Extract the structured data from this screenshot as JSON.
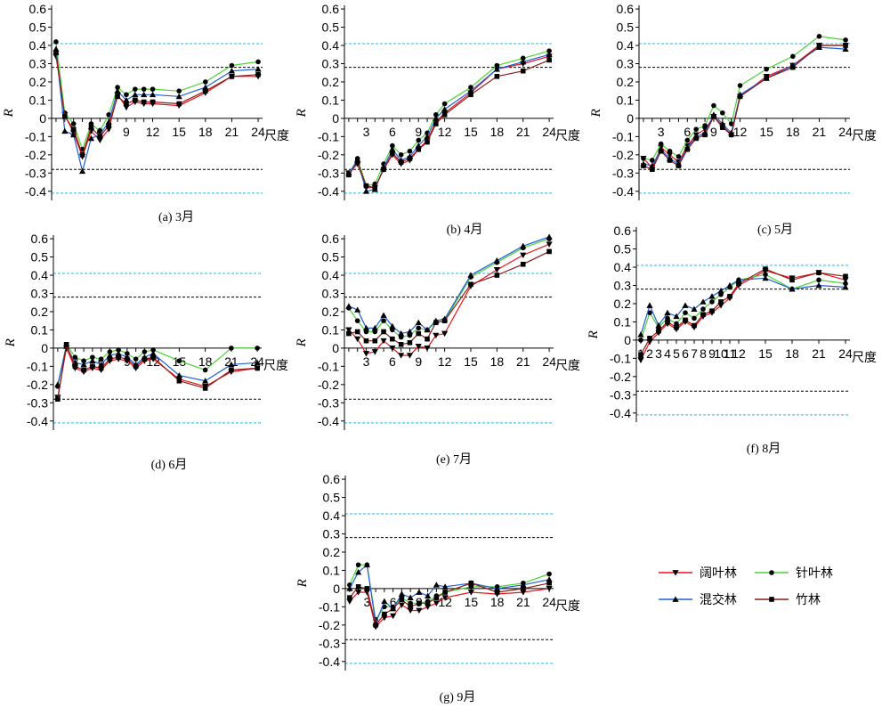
{
  "legend": [
    {
      "name": "阔叶林",
      "color": "#e8141b",
      "marker": "triangle-down"
    },
    {
      "name": "针叶林",
      "color": "#4cd137",
      "marker": "circle"
    },
    {
      "name": "混交林",
      "color": "#1f5fd6",
      "marker": "triangle-up"
    },
    {
      "name": "竹林",
      "color": "#8b1a1a",
      "marker": "square"
    }
  ],
  "threshold_colors": {
    "inner": "#000000",
    "outer": "#22b8e8"
  },
  "axis_text": {
    "ylabel": "R",
    "xunit": "尺度"
  },
  "chart_data": [
    {
      "type": "line",
      "caption": "(a) 3月",
      "x": [
        1,
        2,
        3,
        4,
        5,
        6,
        7,
        8,
        9,
        10,
        11,
        12,
        15,
        18,
        21,
        24
      ],
      "xticks": [
        3,
        6,
        9,
        12,
        15,
        18,
        21,
        24
      ],
      "yticks": [
        -0.4,
        -0.3,
        -0.2,
        -0.1,
        0,
        0.1,
        0.2,
        0.3,
        0.4,
        0.5,
        0.6
      ],
      "ylim": [
        -0.45,
        0.62
      ],
      "thresholds": {
        "inner": 0.28,
        "outer": 0.41
      },
      "series": [
        {
          "name": "阔叶林",
          "values": [
            0.34,
            0.02,
            -0.08,
            -0.21,
            -0.07,
            -0.12,
            -0.06,
            0.13,
            0.06,
            0.09,
            0.08,
            0.08,
            0.07,
            0.14,
            0.23,
            0.23
          ]
        },
        {
          "name": "针叶林",
          "values": [
            0.42,
            0.03,
            -0.03,
            -0.17,
            -0.03,
            -0.07,
            0.02,
            0.17,
            0.13,
            0.16,
            0.16,
            0.16,
            0.15,
            0.2,
            0.29,
            0.31
          ]
        },
        {
          "name": "混交林",
          "values": [
            0.38,
            -0.07,
            -0.09,
            -0.29,
            -0.11,
            -0.09,
            -0.02,
            0.15,
            0.1,
            0.13,
            0.13,
            0.13,
            0.12,
            0.17,
            0.26,
            0.27
          ]
        },
        {
          "name": "竹林",
          "values": [
            0.36,
            0.01,
            -0.06,
            -0.2,
            -0.05,
            -0.1,
            -0.04,
            0.12,
            0.08,
            0.1,
            0.09,
            0.09,
            0.08,
            0.15,
            0.23,
            0.24
          ]
        }
      ]
    },
    {
      "type": "line",
      "caption": "(b) 4月",
      "x": [
        1,
        2,
        3,
        4,
        5,
        6,
        7,
        8,
        9,
        10,
        11,
        12,
        15,
        18,
        21,
        24
      ],
      "xticks": [
        3,
        6,
        9,
        12,
        15,
        18,
        21,
        24
      ],
      "yticks": [
        -0.4,
        -0.3,
        -0.2,
        -0.1,
        0,
        0.1,
        0.2,
        0.3,
        0.4,
        0.5,
        0.6
      ],
      "ylim": [
        -0.45,
        0.62
      ],
      "thresholds": {
        "inner": 0.28,
        "outer": 0.41
      },
      "series": [
        {
          "name": "阔叶林",
          "values": [
            -0.3,
            -0.25,
            -0.38,
            -0.38,
            -0.28,
            -0.2,
            -0.25,
            -0.23,
            -0.17,
            -0.12,
            -0.02,
            0.03,
            0.14,
            0.27,
            0.3,
            0.34
          ]
        },
        {
          "name": "针叶林",
          "values": [
            -0.31,
            -0.22,
            -0.37,
            -0.36,
            -0.25,
            -0.15,
            -0.2,
            -0.18,
            -0.12,
            -0.08,
            0.02,
            0.08,
            0.17,
            0.29,
            0.33,
            0.37
          ]
        },
        {
          "name": "混交林",
          "values": [
            -0.3,
            -0.23,
            -0.4,
            -0.39,
            -0.27,
            -0.17,
            -0.23,
            -0.21,
            -0.15,
            -0.1,
            0.0,
            0.05,
            0.15,
            0.27,
            0.31,
            0.35
          ]
        },
        {
          "name": "竹林",
          "values": [
            -0.31,
            -0.24,
            -0.37,
            -0.38,
            -0.28,
            -0.19,
            -0.24,
            -0.22,
            -0.17,
            -0.13,
            -0.03,
            0.02,
            0.13,
            0.23,
            0.26,
            0.32
          ]
        }
      ]
    },
    {
      "type": "line",
      "caption": "(c) 5月",
      "x": [
        1,
        2,
        3,
        4,
        5,
        6,
        7,
        8,
        9,
        10,
        11,
        12,
        15,
        18,
        21,
        24
      ],
      "xticks": [
        3,
        6,
        9,
        12,
        15,
        18,
        21,
        24
      ],
      "yticks": [
        -0.4,
        -0.3,
        -0.2,
        -0.1,
        0,
        0.1,
        0.2,
        0.3,
        0.4,
        0.5,
        0.6
      ],
      "ylim": [
        -0.45,
        0.62
      ],
      "thresholds": {
        "inner": 0.28,
        "outer": 0.41
      },
      "series": [
        {
          "name": "阔叶林",
          "values": [
            -0.22,
            -0.27,
            -0.16,
            -0.2,
            -0.24,
            -0.15,
            -0.09,
            -0.06,
            0.01,
            -0.04,
            -0.09,
            0.12,
            0.23,
            0.29,
            0.4,
            0.4
          ]
        },
        {
          "name": "针叶林",
          "values": [
            -0.22,
            -0.23,
            -0.14,
            -0.18,
            -0.21,
            -0.12,
            -0.06,
            -0.04,
            0.07,
            0.03,
            -0.03,
            0.18,
            0.27,
            0.34,
            0.45,
            0.43
          ]
        },
        {
          "name": "混交林",
          "values": [
            -0.25,
            -0.26,
            -0.17,
            -0.22,
            -0.25,
            -0.16,
            -0.1,
            -0.08,
            0.02,
            -0.03,
            -0.08,
            0.13,
            0.22,
            0.29,
            0.39,
            0.38
          ]
        },
        {
          "name": "竹林",
          "values": [
            -0.26,
            -0.28,
            -0.18,
            -0.23,
            -0.26,
            -0.17,
            -0.11,
            -0.09,
            0.01,
            -0.05,
            -0.09,
            0.12,
            0.22,
            0.28,
            0.4,
            0.4
          ]
        }
      ]
    },
    {
      "type": "line",
      "caption": "(d) 6月",
      "x": [
        1,
        2,
        3,
        4,
        5,
        6,
        7,
        8,
        9,
        10,
        11,
        12,
        15,
        18,
        21,
        24
      ],
      "xticks": [
        3,
        6,
        9,
        12,
        15,
        18,
        21,
        24
      ],
      "yticks": [
        -0.4,
        -0.3,
        -0.2,
        -0.1,
        0,
        0.1,
        0.2,
        0.3,
        0.4,
        0.5,
        0.6
      ],
      "ylim": [
        -0.45,
        0.62
      ],
      "thresholds": {
        "inner": 0.28,
        "outer": 0.41
      },
      "series": [
        {
          "name": "阔叶林",
          "values": [
            -0.27,
            0.0,
            -0.11,
            -0.13,
            -0.11,
            -0.12,
            -0.07,
            -0.06,
            -0.07,
            -0.11,
            -0.07,
            -0.06,
            -0.17,
            -0.21,
            -0.13,
            -0.11
          ]
        },
        {
          "name": "针叶林",
          "values": [
            -0.21,
            0.02,
            -0.05,
            -0.07,
            -0.05,
            -0.06,
            -0.02,
            -0.01,
            -0.03,
            -0.06,
            -0.02,
            -0.01,
            -0.07,
            -0.12,
            0.0,
            0.0
          ]
        },
        {
          "name": "混交林",
          "values": [
            -0.2,
            0.01,
            -0.08,
            -0.09,
            -0.07,
            -0.09,
            -0.04,
            -0.03,
            -0.05,
            -0.09,
            -0.05,
            -0.03,
            -0.15,
            -0.18,
            -0.09,
            -0.08
          ]
        },
        {
          "name": "竹林",
          "values": [
            -0.28,
            0.02,
            -0.1,
            -0.12,
            -0.1,
            -0.11,
            -0.06,
            -0.05,
            -0.06,
            -0.1,
            -0.06,
            -0.05,
            -0.18,
            -0.22,
            -0.12,
            -0.11
          ]
        }
      ]
    },
    {
      "type": "line",
      "caption": "(e) 7月",
      "x": [
        1,
        2,
        3,
        4,
        5,
        6,
        7,
        8,
        9,
        10,
        11,
        12,
        15,
        18,
        21,
        24
      ],
      "xticks": [
        3,
        6,
        9,
        12,
        15,
        18,
        21,
        24
      ],
      "yticks": [
        -0.4,
        -0.3,
        -0.2,
        -0.1,
        0,
        0.1,
        0.2,
        0.3,
        0.4,
        0.5,
        0.6
      ],
      "ylim": [
        -0.45,
        0.62
      ],
      "thresholds": {
        "inner": 0.28,
        "outer": 0.41
      },
      "series": [
        {
          "name": "阔叶林",
          "values": [
            0.1,
            0.05,
            -0.03,
            -0.02,
            0.04,
            0.0,
            -0.04,
            -0.04,
            0.01,
            0.0,
            0.07,
            0.08,
            0.34,
            0.43,
            0.51,
            0.57
          ]
        },
        {
          "name": "针叶林",
          "values": [
            0.22,
            0.15,
            0.09,
            0.09,
            0.15,
            0.1,
            0.06,
            0.07,
            0.11,
            0.1,
            0.14,
            0.15,
            0.39,
            0.47,
            0.55,
            0.6
          ]
        },
        {
          "name": "混交林",
          "values": [
            0.23,
            0.21,
            0.11,
            0.11,
            0.18,
            0.12,
            0.08,
            0.09,
            0.14,
            0.1,
            0.15,
            0.16,
            0.4,
            0.48,
            0.56,
            0.61
          ]
        },
        {
          "name": "竹林",
          "values": [
            0.08,
            0.09,
            0.04,
            0.04,
            0.09,
            0.05,
            0.02,
            0.03,
            0.08,
            0.05,
            0.14,
            0.15,
            0.35,
            0.4,
            0.46,
            0.53
          ]
        }
      ]
    },
    {
      "type": "line",
      "caption": "(f) 8月",
      "x": [
        1,
        2,
        3,
        4,
        5,
        6,
        7,
        8,
        9,
        10,
        11,
        12,
        15,
        18,
        21,
        24
      ],
      "xticks": [
        1,
        2,
        3,
        4,
        5,
        6,
        7,
        8,
        9,
        10,
        11,
        12,
        15,
        18,
        21,
        24
      ],
      "yticks": [
        -0.4,
        -0.3,
        -0.2,
        -0.1,
        0,
        0.1,
        0.2,
        0.3,
        0.4,
        0.5,
        0.6
      ],
      "ylim": [
        -0.45,
        0.62
      ],
      "thresholds": {
        "inner": 0.28,
        "outer": 0.41
      },
      "series": [
        {
          "name": "阔叶林",
          "values": [
            -0.11,
            -0.01,
            0.04,
            0.09,
            0.06,
            0.1,
            0.07,
            0.13,
            0.15,
            0.19,
            0.23,
            0.3,
            0.38,
            0.34,
            0.37,
            0.33
          ]
        },
        {
          "name": "针叶林",
          "values": [
            0.0,
            0.15,
            0.07,
            0.12,
            0.09,
            0.15,
            0.12,
            0.17,
            0.21,
            0.25,
            0.29,
            0.33,
            0.36,
            0.28,
            0.33,
            0.31
          ]
        },
        {
          "name": "混交林",
          "values": [
            0.03,
            0.19,
            0.08,
            0.15,
            0.13,
            0.19,
            0.17,
            0.21,
            0.24,
            0.27,
            0.3,
            0.33,
            0.34,
            0.28,
            0.3,
            0.29
          ]
        },
        {
          "name": "竹林",
          "values": [
            -0.08,
            0.01,
            0.05,
            0.1,
            0.07,
            0.11,
            0.08,
            0.14,
            0.16,
            0.21,
            0.24,
            0.31,
            0.39,
            0.33,
            0.37,
            0.35
          ]
        }
      ]
    },
    {
      "type": "line",
      "caption": "(g) 9月",
      "x": [
        1,
        2,
        3,
        4,
        5,
        6,
        7,
        8,
        9,
        10,
        11,
        12,
        15,
        18,
        21,
        24
      ],
      "xticks": [
        3,
        6,
        9,
        12,
        15,
        18,
        21,
        24
      ],
      "yticks": [
        -0.4,
        -0.3,
        -0.2,
        -0.1,
        0,
        0.1,
        0.2,
        0.3,
        0.4,
        0.5,
        0.6
      ],
      "ylim": [
        -0.45,
        0.62
      ],
      "thresholds": {
        "inner": 0.28,
        "outer": 0.41
      },
      "series": [
        {
          "name": "阔叶林",
          "values": [
            -0.07,
            -0.02,
            -0.02,
            -0.21,
            -0.16,
            -0.15,
            -0.09,
            -0.12,
            -0.12,
            -0.1,
            -0.08,
            -0.05,
            -0.02,
            -0.03,
            -0.02,
            0.0
          ]
        },
        {
          "name": "针叶林",
          "values": [
            0.02,
            0.13,
            0.13,
            -0.17,
            -0.1,
            -0.1,
            -0.05,
            -0.08,
            -0.08,
            -0.07,
            -0.04,
            -0.02,
            0.01,
            0.01,
            0.03,
            0.08
          ]
        },
        {
          "name": "混交林",
          "values": [
            0.0,
            0.09,
            0.13,
            -0.19,
            -0.07,
            -0.11,
            -0.03,
            -0.05,
            -0.02,
            -0.04,
            0.02,
            0.01,
            0.03,
            0.0,
            0.02,
            0.05
          ]
        },
        {
          "name": "竹林",
          "values": [
            -0.05,
            0.01,
            0.0,
            -0.2,
            -0.14,
            -0.11,
            -0.06,
            -0.1,
            -0.08,
            -0.08,
            -0.05,
            -0.02,
            0.03,
            -0.02,
            0.0,
            0.03
          ]
        }
      ]
    }
  ]
}
